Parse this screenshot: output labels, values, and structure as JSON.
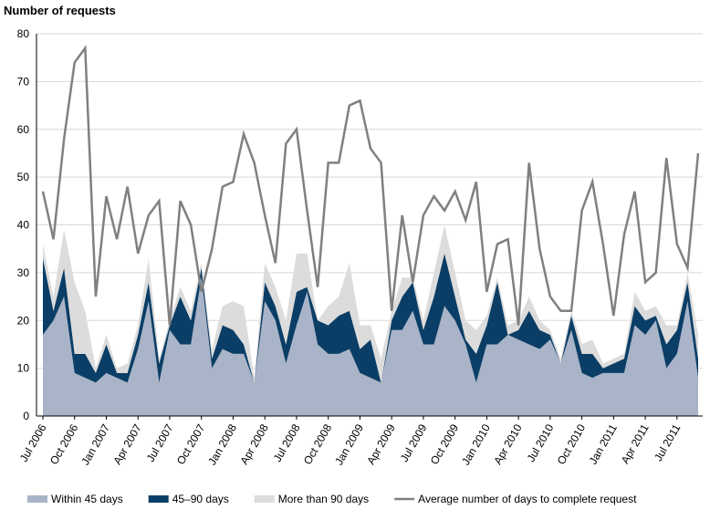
{
  "chart_data": {
    "type": "stacked_area_line",
    "y_axis_label": "Number of requests",
    "categories": [
      "Jul 2006",
      null,
      null,
      "Oct 2006",
      null,
      null,
      "Jan 2007",
      null,
      null,
      "Apr 2007",
      null,
      null,
      "Jul 2007",
      null,
      null,
      "Oct 2007",
      null,
      null,
      "Jan 2008",
      null,
      null,
      "Apr 2008",
      null,
      null,
      "Jul 2008",
      null,
      null,
      "Oct 2008",
      null,
      null,
      "Jan 2009",
      null,
      null,
      "Apr 2009",
      null,
      null,
      "Jul 2009",
      null,
      null,
      "Oct 2009",
      null,
      null,
      "Jan 2010",
      null,
      null,
      "Apr 2010",
      null,
      null,
      "Jul 2010",
      null,
      null,
      "Oct 2010",
      null,
      null,
      "Jan 2011",
      null,
      null,
      "Apr 2011",
      null,
      null,
      "Jul 2011",
      null,
      null
    ],
    "series": [
      {
        "name": "Within 45 days",
        "color": "#a9b4c8",
        "stack": true,
        "values": [
          17,
          20,
          25,
          9,
          8,
          7,
          9,
          8,
          7,
          14,
          24,
          7,
          18,
          15,
          15,
          29,
          10,
          14,
          13,
          13,
          7,
          24,
          20,
          11,
          19,
          26,
          15,
          13,
          13,
          14,
          9,
          8,
          7,
          18,
          18,
          22,
          15,
          15,
          23,
          20,
          15,
          7,
          15,
          15,
          17,
          16,
          15,
          14,
          16,
          11,
          18,
          9,
          8,
          9,
          9,
          9,
          19,
          17,
          20,
          10,
          13,
          24,
          8
        ]
      },
      {
        "name": "45–90 days",
        "color": "#0b3e66",
        "stack": true,
        "values": [
          16,
          2,
          6,
          4,
          5,
          2,
          6,
          1,
          2,
          3,
          4,
          4,
          1,
          10,
          5,
          2,
          2,
          5,
          5,
          2,
          0,
          4,
          3,
          4,
          7,
          1,
          5,
          6,
          8,
          8,
          5,
          8,
          0,
          2,
          7,
          6,
          3,
          10,
          11,
          5,
          1,
          6,
          4,
          13,
          0,
          2,
          7,
          4,
          1,
          0,
          3,
          4,
          5,
          1,
          2,
          3,
          4,
          3,
          1,
          5,
          5,
          4,
          4
        ]
      },
      {
        "name": "More than 90 days",
        "color": "#dcdcdc",
        "stack": true,
        "values": [
          3,
          3,
          8,
          15,
          9,
          1,
          2,
          1,
          2,
          2,
          5,
          1,
          1,
          2,
          2,
          1,
          2,
          4,
          6,
          8,
          1,
          4,
          4,
          5,
          8,
          7,
          0,
          4,
          4,
          10,
          5,
          3,
          5,
          2,
          4,
          1,
          2,
          5,
          6,
          5,
          4,
          5,
          2,
          1,
          2,
          2,
          3,
          2,
          1,
          1,
          1,
          2,
          3,
          1,
          1,
          1,
          3,
          2,
          2,
          4,
          1,
          2,
          5
        ]
      },
      {
        "name": "Average number of days to complete request",
        "color": "#808080",
        "stack": false,
        "values": [
          47,
          37,
          58,
          74,
          77,
          25,
          46,
          37,
          48,
          34,
          42,
          45,
          19,
          45,
          40,
          26,
          35,
          48,
          49,
          59,
          53,
          42,
          32,
          57,
          60,
          43,
          27,
          53,
          53,
          65,
          66,
          56,
          53,
          22,
          42,
          28,
          42,
          46,
          43,
          47,
          41,
          49,
          26,
          36,
          37,
          19,
          53,
          35,
          25,
          22,
          22,
          43,
          49,
          36,
          21,
          38,
          47,
          28,
          30,
          54,
          36,
          31,
          55
        ]
      }
    ],
    "ylim": [
      0,
      80
    ],
    "yticks": [
      0,
      10,
      20,
      30,
      40,
      50,
      60,
      70,
      80
    ],
    "grid": true,
    "legend": "bottom"
  }
}
